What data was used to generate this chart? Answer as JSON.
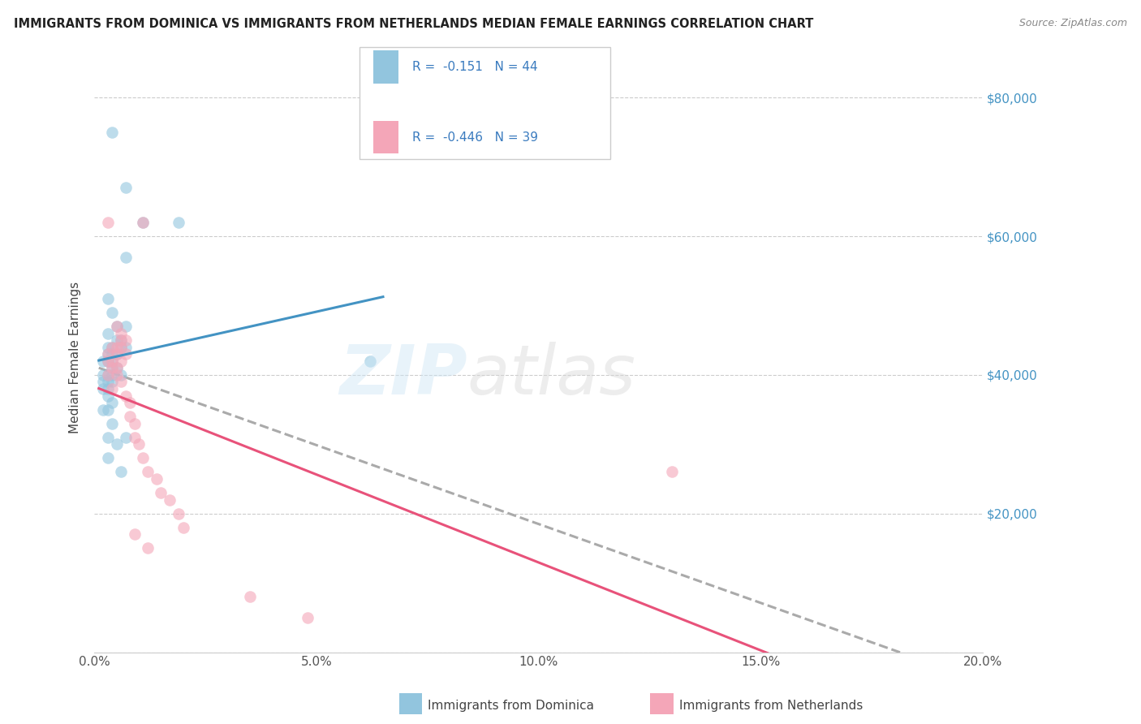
{
  "title": "IMMIGRANTS FROM DOMINICA VS IMMIGRANTS FROM NETHERLANDS MEDIAN FEMALE EARNINGS CORRELATION CHART",
  "source": "Source: ZipAtlas.com",
  "ylabel": "Median Female Earnings",
  "x_min": 0.0,
  "x_max": 0.2,
  "y_min": 0,
  "y_max": 80000,
  "x_ticks": [
    0.0,
    0.05,
    0.1,
    0.15,
    0.2
  ],
  "x_tick_labels": [
    "0.0%",
    "5.0%",
    "10.0%",
    "15.0%",
    "20.0%"
  ],
  "y_ticks": [
    0,
    20000,
    40000,
    60000,
    80000
  ],
  "y_tick_labels": [
    "",
    "$20,000",
    "$40,000",
    "$60,000",
    "$80,000"
  ],
  "legend1_label": "Immigrants from Dominica",
  "legend2_label": "Immigrants from Netherlands",
  "r1": -0.151,
  "n1": 44,
  "r2": -0.446,
  "n2": 39,
  "color_blue": "#92c5de",
  "color_pink": "#f4a6b8",
  "color_blue_line": "#4393c3",
  "color_pink_line": "#e8527a",
  "color_dashed": "#aaaaaa",
  "blue_points": [
    [
      0.004,
      75000
    ],
    [
      0.007,
      67000
    ],
    [
      0.011,
      62000
    ],
    [
      0.019,
      62000
    ],
    [
      0.007,
      57000
    ],
    [
      0.003,
      51000
    ],
    [
      0.004,
      49000
    ],
    [
      0.005,
      47000
    ],
    [
      0.007,
      47000
    ],
    [
      0.003,
      46000
    ],
    [
      0.005,
      45000
    ],
    [
      0.006,
      45000
    ],
    [
      0.003,
      44000
    ],
    [
      0.004,
      44000
    ],
    [
      0.006,
      44000
    ],
    [
      0.007,
      44000
    ],
    [
      0.003,
      43000
    ],
    [
      0.004,
      43000
    ],
    [
      0.005,
      43000
    ],
    [
      0.002,
      42000
    ],
    [
      0.003,
      42000
    ],
    [
      0.004,
      42000
    ],
    [
      0.004,
      41000
    ],
    [
      0.005,
      41000
    ],
    [
      0.002,
      40000
    ],
    [
      0.003,
      40000
    ],
    [
      0.004,
      40000
    ],
    [
      0.006,
      40000
    ],
    [
      0.002,
      39000
    ],
    [
      0.003,
      39000
    ],
    [
      0.004,
      39000
    ],
    [
      0.002,
      38000
    ],
    [
      0.003,
      38000
    ],
    [
      0.003,
      37000
    ],
    [
      0.004,
      36000
    ],
    [
      0.002,
      35000
    ],
    [
      0.003,
      35000
    ],
    [
      0.004,
      33000
    ],
    [
      0.003,
      31000
    ],
    [
      0.007,
      31000
    ],
    [
      0.005,
      30000
    ],
    [
      0.062,
      42000
    ],
    [
      0.003,
      28000
    ],
    [
      0.006,
      26000
    ]
  ],
  "pink_points": [
    [
      0.003,
      62000
    ],
    [
      0.011,
      62000
    ],
    [
      0.005,
      47000
    ],
    [
      0.006,
      46000
    ],
    [
      0.006,
      45000
    ],
    [
      0.007,
      45000
    ],
    [
      0.004,
      44000
    ],
    [
      0.005,
      44000
    ],
    [
      0.006,
      44000
    ],
    [
      0.003,
      43000
    ],
    [
      0.005,
      43000
    ],
    [
      0.007,
      43000
    ],
    [
      0.003,
      42000
    ],
    [
      0.004,
      42000
    ],
    [
      0.006,
      42000
    ],
    [
      0.004,
      41000
    ],
    [
      0.005,
      41000
    ],
    [
      0.003,
      40000
    ],
    [
      0.005,
      40000
    ],
    [
      0.006,
      39000
    ],
    [
      0.004,
      38000
    ],
    [
      0.007,
      37000
    ],
    [
      0.008,
      36000
    ],
    [
      0.008,
      34000
    ],
    [
      0.009,
      33000
    ],
    [
      0.009,
      31000
    ],
    [
      0.01,
      30000
    ],
    [
      0.011,
      28000
    ],
    [
      0.012,
      26000
    ],
    [
      0.014,
      25000
    ],
    [
      0.015,
      23000
    ],
    [
      0.017,
      22000
    ],
    [
      0.019,
      20000
    ],
    [
      0.02,
      18000
    ],
    [
      0.13,
      26000
    ],
    [
      0.009,
      17000
    ],
    [
      0.012,
      15000
    ],
    [
      0.035,
      8000
    ],
    [
      0.048,
      5000
    ]
  ]
}
